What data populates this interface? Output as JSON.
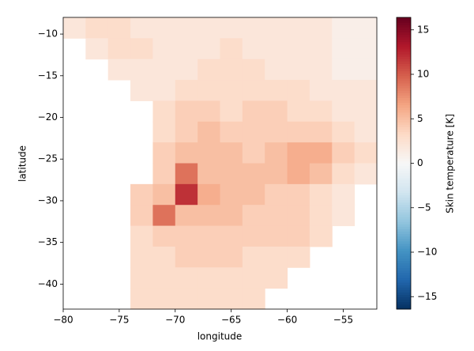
{
  "chart_data": {
    "type": "heatmap",
    "xlabel": "longitude",
    "ylabel": "latitude",
    "colorbar_label": "Skin temperature [K]",
    "colors": [
      "#053061",
      "#2166ac",
      "#4393c3",
      "#92c5de",
      "#d1e5f0",
      "#f7f7f7",
      "#fddbc7",
      "#f4a582",
      "#d6604d",
      "#b2182b",
      "#67001f"
    ],
    "clim": [
      -16.4,
      16.4
    ],
    "cticks": [
      {
        "value": -15,
        "label": "−15"
      },
      {
        "value": -10,
        "label": "−10"
      },
      {
        "value": -5,
        "label": "−5"
      },
      0,
      5,
      10,
      15
    ],
    "xlim": [
      -80,
      -52
    ],
    "ylim": [
      -43,
      -8
    ],
    "xticks": [
      {
        "value": -80,
        "label": "−80"
      },
      {
        "value": -75,
        "label": "−75"
      },
      {
        "value": -70,
        "label": "−70"
      },
      {
        "value": -65,
        "label": "−65"
      },
      {
        "value": -60,
        "label": "−60"
      },
      {
        "value": -55,
        "label": "−55"
      }
    ],
    "yticks": [
      {
        "value": -40,
        "label": "−40"
      },
      {
        "value": -35,
        "label": "−35"
      },
      {
        "value": -30,
        "label": "−30"
      },
      {
        "value": -25,
        "label": "−25"
      },
      {
        "value": -20,
        "label": "−20"
      },
      {
        "value": -15,
        "label": "−15"
      },
      {
        "value": -10,
        "label": "−10"
      }
    ],
    "x": [
      -79,
      -77,
      -75,
      -73,
      -71,
      -69,
      -67,
      -65,
      -63,
      -61,
      -59,
      -57,
      -55,
      -53
    ],
    "y": [
      -9.25,
      -11.75,
      -14.25,
      -16.75,
      -19.25,
      -21.75,
      -24.25,
      -26.75,
      -29.25,
      -31.75,
      -34.25,
      -36.75,
      -39.25,
      -41.75
    ],
    "values": [
      [
        2,
        3,
        3,
        2,
        2,
        2,
        2,
        2,
        2,
        2,
        2,
        2,
        1,
        1
      ],
      [
        null,
        2,
        3,
        3,
        2,
        2,
        2,
        3,
        2,
        2,
        2,
        2,
        1,
        1
      ],
      [
        null,
        null,
        2,
        2,
        2,
        2,
        3,
        3,
        3,
        2,
        2,
        2,
        1,
        1
      ],
      [
        null,
        null,
        null,
        2,
        2,
        3,
        3,
        3,
        3,
        3,
        3,
        2,
        2,
        2
      ],
      [
        null,
        null,
        null,
        null,
        3,
        4,
        4,
        3,
        4,
        4,
        3,
        3,
        2,
        2
      ],
      [
        null,
        null,
        null,
        null,
        3,
        4,
        5,
        4,
        4,
        4,
        4,
        4,
        3,
        2
      ],
      [
        null,
        null,
        null,
        null,
        4,
        5,
        5,
        5,
        4,
        5,
        6,
        6,
        4,
        3
      ],
      [
        null,
        null,
        null,
        null,
        4,
        9,
        5,
        5,
        5,
        5,
        6,
        5,
        3,
        2
      ],
      [
        null,
        null,
        null,
        4,
        5,
        12,
        6,
        5,
        5,
        4,
        4,
        3,
        2,
        null
      ],
      [
        null,
        null,
        null,
        4,
        9,
        5,
        5,
        5,
        4,
        4,
        4,
        3,
        2,
        null
      ],
      [
        null,
        null,
        null,
        3,
        4,
        4,
        4,
        4,
        4,
        4,
        4,
        3,
        null,
        null
      ],
      [
        null,
        null,
        null,
        3,
        3,
        4,
        4,
        4,
        3,
        3,
        3,
        null,
        null,
        null
      ],
      [
        null,
        null,
        null,
        3,
        3,
        3,
        3,
        3,
        3,
        3,
        null,
        null,
        null,
        null
      ],
      [
        null,
        null,
        null,
        3,
        3,
        3,
        3,
        3,
        3,
        null,
        null,
        null,
        null,
        null
      ]
    ]
  }
}
